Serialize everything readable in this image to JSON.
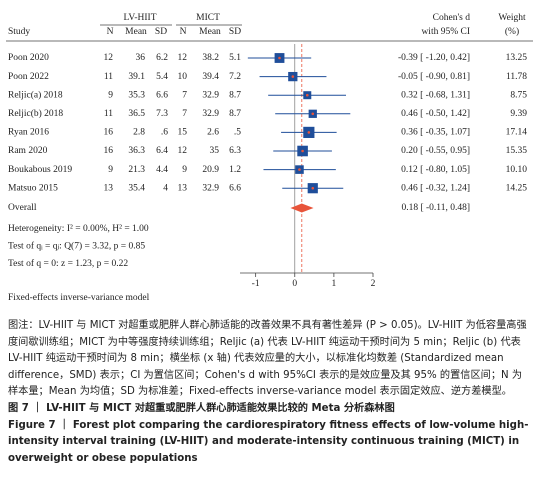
{
  "chart_data": {
    "type": "forest",
    "headers": {
      "study": "Study",
      "group1": "LV-HIIT",
      "group2": "MICT",
      "n": "N",
      "mean": "Mean",
      "sd": "SD",
      "effect": "Cohen's d",
      "effect2": "with 95% CI",
      "weight": "Weight",
      "weight2": "(%)"
    },
    "studies": [
      {
        "study": "Poon 2020",
        "cells": [
          "12",
          "36",
          "6.2",
          "12",
          "38.2",
          "5.1"
        ],
        "d": -0.39,
        "ci": [
          -1.2,
          0.42
        ],
        "effect_label": "-0.39 [ -1.20, 0.42]",
        "weight": 13.25
      },
      {
        "study": "Poon 2022",
        "cells": [
          "11",
          "39.1",
          "5.4",
          "10",
          "39.4",
          "7.2"
        ],
        "d": -0.05,
        "ci": [
          -0.9,
          0.81
        ],
        "effect_label": "-0.05 [ -0.90, 0.81]",
        "weight": 11.78
      },
      {
        "study": "Reljic(a) 2018",
        "cells": [
          "9",
          "35.3",
          "6.6",
          "7",
          "32.9",
          "8.7"
        ],
        "d": 0.32,
        "ci": [
          -0.68,
          1.31
        ],
        "effect_label": "0.32 [ -0.68, 1.31]",
        "weight": 8.75
      },
      {
        "study": "Reljic(b) 2018",
        "cells": [
          "11",
          "36.5",
          "7.3",
          "7",
          "32.9",
          "8.7"
        ],
        "d": 0.46,
        "ci": [
          -0.5,
          1.42
        ],
        "effect_label": "0.46 [ -0.50, 1.42]",
        "weight": 9.39
      },
      {
        "study": "Ryan 2016",
        "cells": [
          "16",
          "2.8",
          ".6",
          "15",
          "2.6",
          ".5"
        ],
        "d": 0.36,
        "ci": [
          -0.35,
          1.07
        ],
        "effect_label": "0.36 [ -0.35, 1.07]",
        "weight": 17.14
      },
      {
        "study": "Ram 2020",
        "cells": [
          "16",
          "36.3",
          "6.4",
          "12",
          "35",
          "6.3"
        ],
        "d": 0.2,
        "ci": [
          -0.55,
          0.95
        ],
        "effect_label": "0.20 [ -0.55, 0.95]",
        "weight": 15.35
      },
      {
        "study": "Boukabous 2019",
        "cells": [
          "9",
          "21.3",
          "4.4",
          "9",
          "20.9",
          "1.2"
        ],
        "d": 0.12,
        "ci": [
          -0.8,
          1.05
        ],
        "effect_label": "0.12 [ -0.80, 1.05]",
        "weight": {
          "value": 10.1,
          "label": "10.10"
        }
      },
      {
        "study": "Matsuo 2015",
        "cells": [
          "13",
          "35.4",
          "4",
          "13",
          "32.9",
          "6.6"
        ],
        "d": 0.46,
        "ci": [
          -0.32,
          1.24
        ],
        "effect_label": "0.46 [ -0.32, 1.24]",
        "weight": 14.25
      }
    ],
    "overall": {
      "label": "Overall",
      "d": 0.18,
      "ci": [
        -0.11,
        0.48
      ],
      "effect_label": "0.18 [ -0.11, 0.48]"
    },
    "stats": [
      "Heterogeneity: I² = 0.00%, H² = 1.00",
      "Test of qᵢ = qⱼ: Q(7) = 3.32, p = 0.85",
      "Test of q = 0: z = 1.23, p = 0.22"
    ],
    "model": "Fixed-effects inverse-variance model",
    "xlim": [
      -1.4,
      2
    ],
    "xticks": [
      -1,
      0,
      1,
      2
    ],
    "square_color": "#1f4e9a",
    "ci_color": "#1f4e9a",
    "overall_color": "#e8543a"
  },
  "caption": {
    "note": "图注：LV-HIIT 与 MICT 对超重或肥胖人群心肺适能的改善效果不具有著性差异 (P > 0.05)。LV-HIIT 为低容量高强度间歇训练组；MICT 为中等强度持续训练组；Reljic (a) 代表 LV-HIIT 纯运动干预时间为 5 min；Reljic (b) 代表 LV-HIIT 纯运动干预时间为 8 min；横坐标 (x 轴) 代表效应量的大小，以标准化均数差 (Standardized mean difference，SMD) 表示；CI 为置信区间；Cohen's d with 95%CI 表示的是效应量及其 95% 的置信区间；N 为样本量；Mean 为均值；SD 为标准差；Fixed-effects inverse-variance model 表示固定效应、逆方差模型。",
    "title_cn": "图 7 ｜ LV-HIIT 与 MICT 对超重或肥胖人群心肺适能效果比较的 Meta 分析森林图",
    "title_en": "Figure 7 ｜ Forest plot comparing the cardiorespiratory fitness effects of low-volume high-intensity interval training (LV-HIIT) and moderate-intensity continuous training (MICT) in overweight or obese populations"
  }
}
